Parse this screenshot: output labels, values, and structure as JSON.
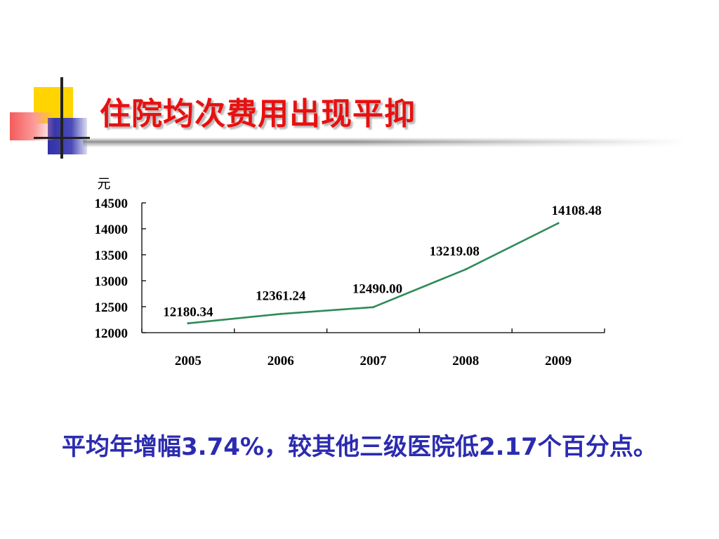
{
  "slide": {
    "title": "住院均次费用出现平抑",
    "summary": "平均年增幅3.74%，较其他三级医院低2.17个百分点。"
  },
  "colors": {
    "title": "#e81010",
    "summary": "#2b2bb0",
    "line": "#2e8b57"
  },
  "chart_data": {
    "type": "line",
    "title": "",
    "xlabel": "",
    "ylabel": "元",
    "categories": [
      "2005",
      "2006",
      "2007",
      "2008",
      "2009"
    ],
    "series": [
      {
        "values": [
          12180.34,
          12361.24,
          12490.0,
          13219.08,
          14108.48
        ],
        "labels": [
          "12180.34",
          "12361.24",
          "12490.00",
          "13219.08",
          "14108.48"
        ]
      }
    ],
    "ylim": [
      12000,
      14500
    ],
    "yticks": [
      12000,
      12500,
      13000,
      13500,
      14000,
      14500
    ],
    "grid": false,
    "legend": "none"
  }
}
